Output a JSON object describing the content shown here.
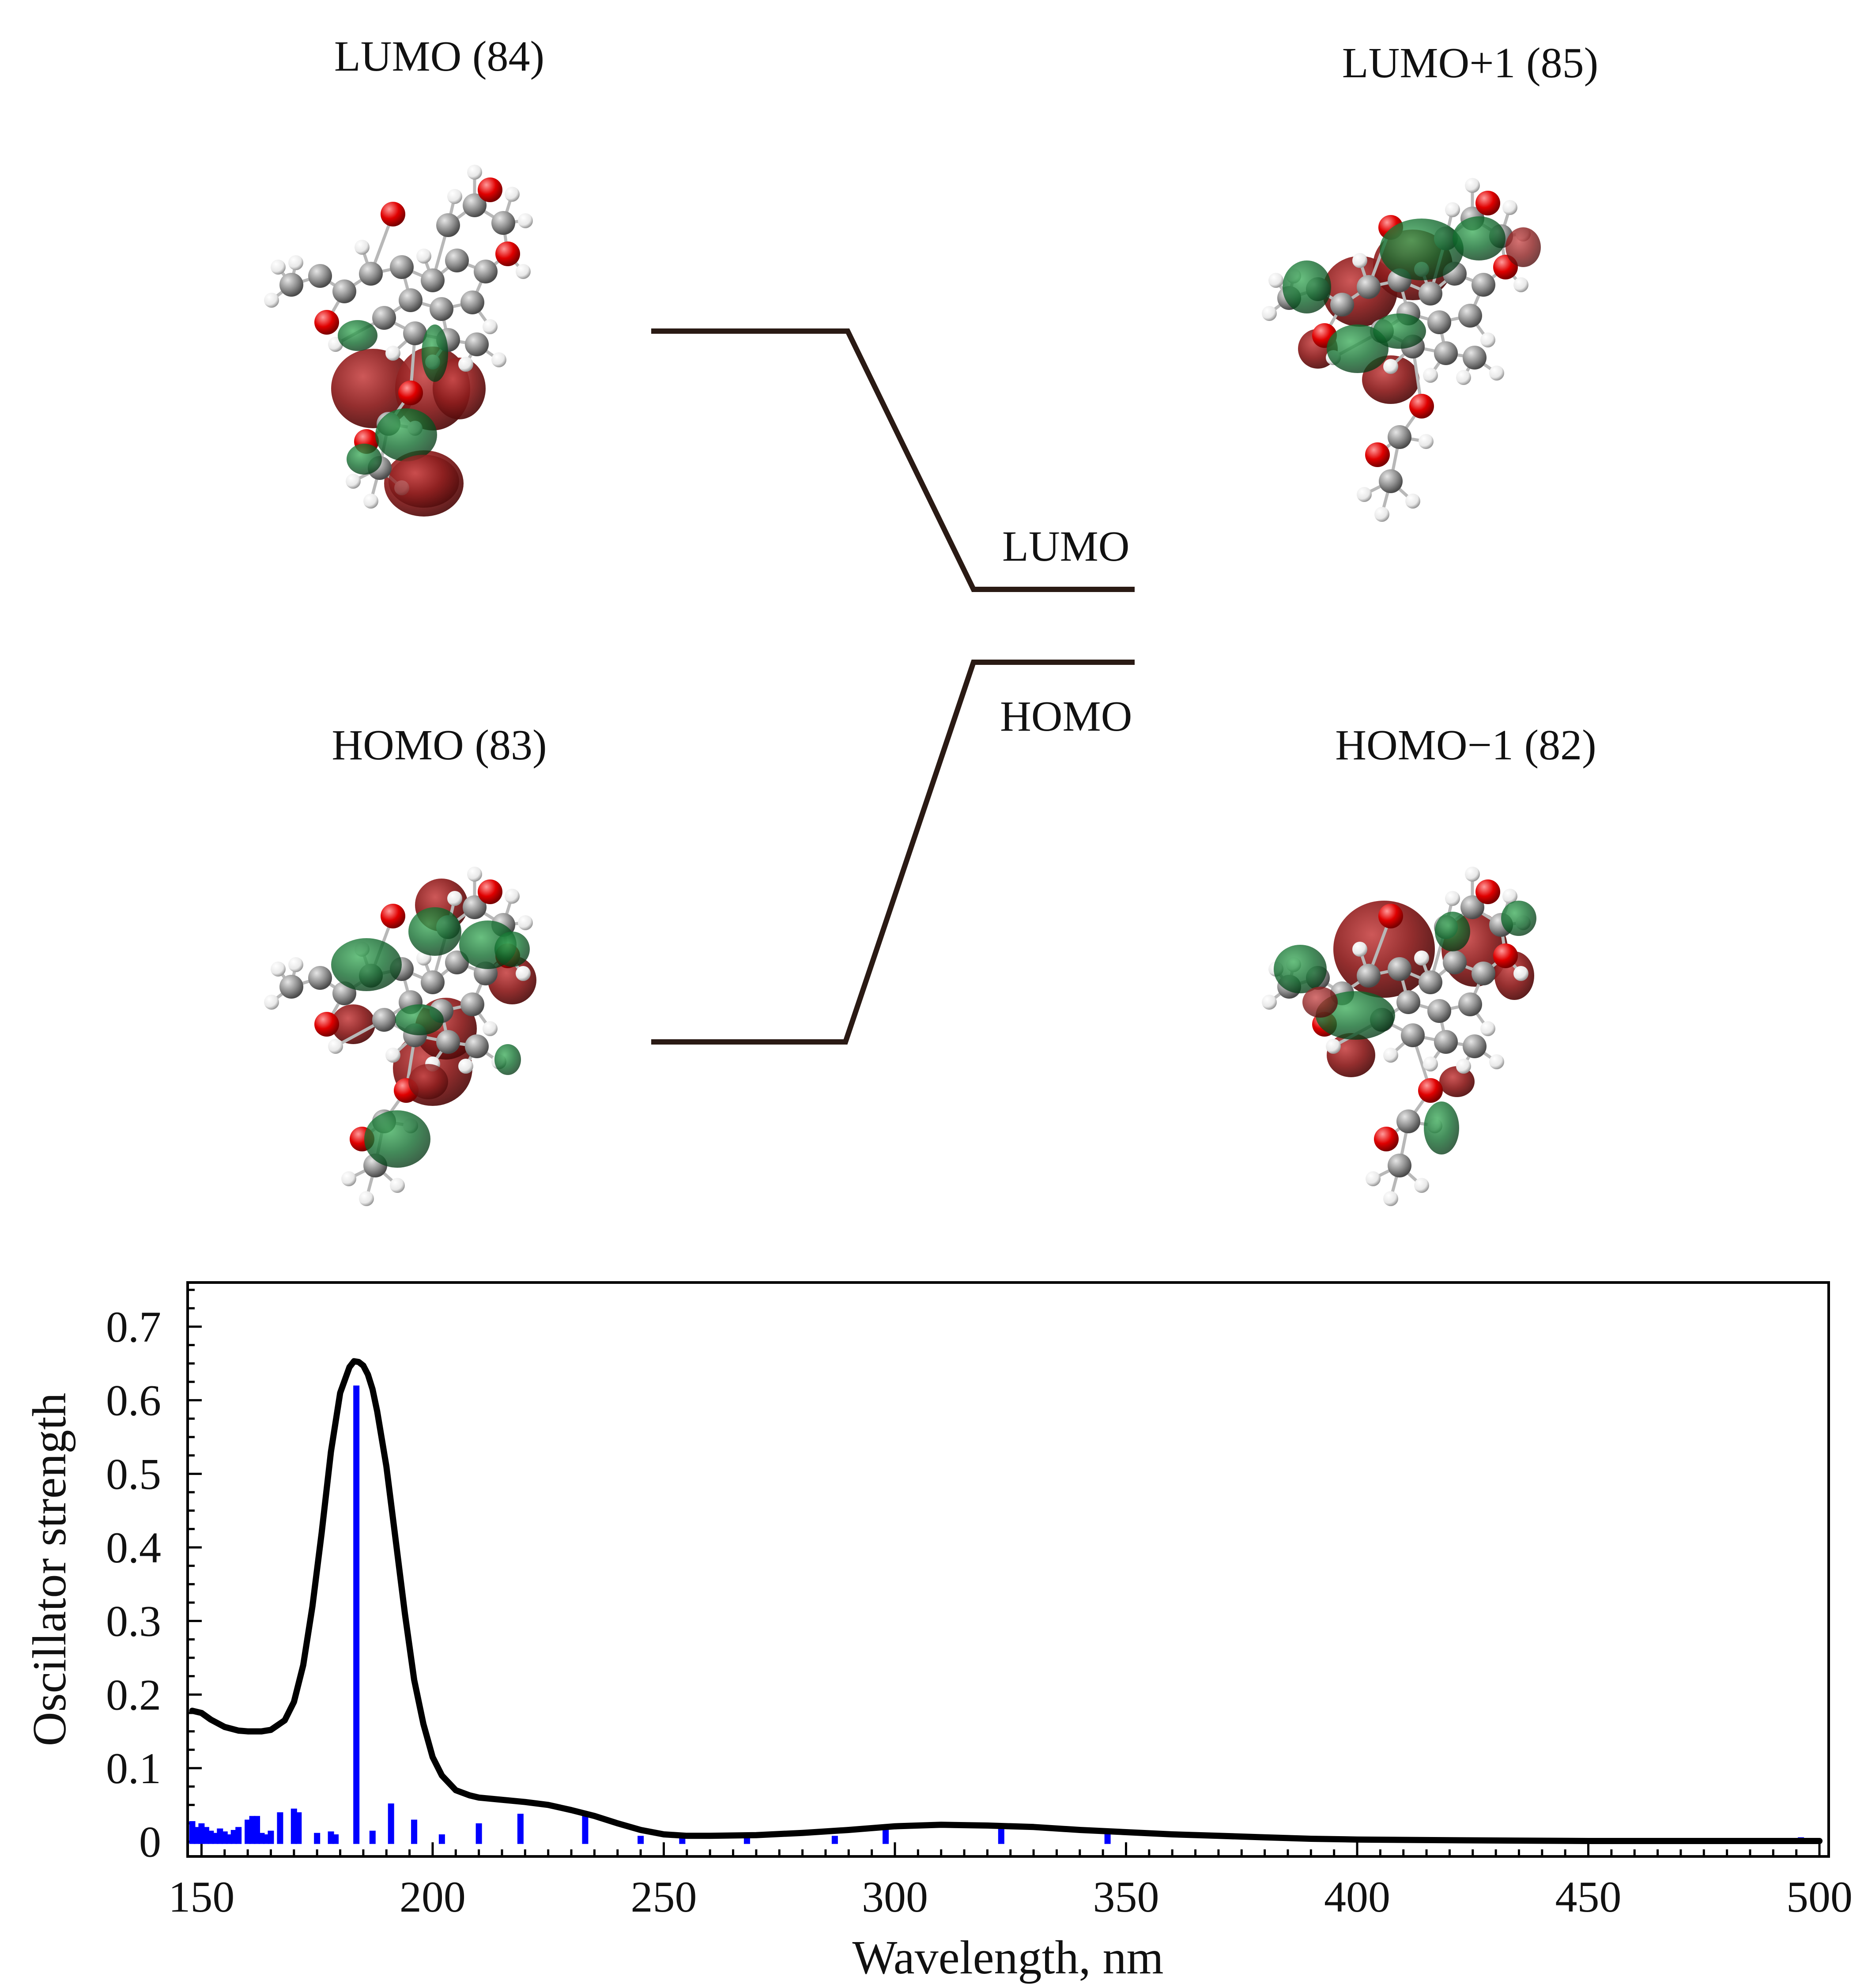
{
  "orbitals": {
    "lumo": {
      "label": "LUMO (84)"
    },
    "lumo_plus_1": {
      "label": "LUMO+1 (85)"
    },
    "homo": {
      "label": "HOMO (83)"
    },
    "homo_minus_1": {
      "label": "HOMO−1 (82)"
    }
  },
  "energy_diagram": {
    "lumo_label": "LUMO",
    "homo_label": "HOMO"
  },
  "colors": {
    "positive_lobe": "#8b1c1c",
    "negative_lobe": "#0f6b2c",
    "carbon": "#8c8c8c",
    "oxygen": "#e00000",
    "hydrogen": "#f2f2f2",
    "bond": "#b0b0b0",
    "line": "#000000",
    "bars": "#0000ff",
    "level_line": "#2a1a14"
  },
  "chart_data": {
    "type": "line",
    "title": "",
    "xlabel": "Wavelength, nm",
    "ylabel": "Oscillator strength",
    "xlim": [
      147,
      502
    ],
    "ylim": [
      -0.02,
      0.76
    ],
    "x_ticks": [
      150,
      200,
      250,
      300,
      350,
      400,
      450,
      500
    ],
    "y_ticks": [
      0,
      0.1,
      0.2,
      0.3,
      0.4,
      0.5,
      0.6,
      0.7
    ],
    "x_tick_labels": [
      "150",
      "200",
      "250",
      "300",
      "350",
      "400",
      "450",
      "500"
    ],
    "y_tick_labels": [
      "0",
      "0.1",
      "0.2",
      "0.3",
      "0.4",
      "0.5",
      "0.6",
      "0.7"
    ],
    "series": [
      {
        "name": "Spectrum",
        "type": "line",
        "color": "#000000",
        "x": [
          148,
          150,
          152,
          155,
          158,
          160,
          163,
          165,
          168,
          170,
          172,
          174,
          176,
          178,
          180,
          182,
          183,
          184,
          185,
          186,
          187,
          188,
          190,
          192,
          194,
          196,
          198,
          200,
          202,
          205,
          208,
          210,
          215,
          220,
          225,
          230,
          235,
          240,
          245,
          250,
          255,
          260,
          270,
          280,
          290,
          300,
          310,
          320,
          330,
          340,
          350,
          360,
          370,
          380,
          390,
          400,
          420,
          450,
          480,
          500
        ],
        "y": [
          0.178,
          0.175,
          0.166,
          0.156,
          0.151,
          0.15,
          0.15,
          0.152,
          0.165,
          0.19,
          0.24,
          0.32,
          0.42,
          0.53,
          0.61,
          0.645,
          0.653,
          0.652,
          0.647,
          0.635,
          0.615,
          0.585,
          0.51,
          0.41,
          0.31,
          0.22,
          0.16,
          0.115,
          0.09,
          0.07,
          0.063,
          0.06,
          0.057,
          0.054,
          0.05,
          0.043,
          0.035,
          0.025,
          0.016,
          0.01,
          0.008,
          0.008,
          0.009,
          0.012,
          0.016,
          0.021,
          0.023,
          0.022,
          0.02,
          0.016,
          0.013,
          0.01,
          0.008,
          0.006,
          0.004,
          0.003,
          0.002,
          0.001,
          0.001,
          0.001
        ]
      },
      {
        "name": "Transitions",
        "type": "bar",
        "color": "#0000ff",
        "x": [
          148,
          149,
          150,
          151,
          152,
          153,
          154,
          155,
          156,
          157,
          158,
          160,
          161,
          162,
          163,
          164,
          165,
          167,
          170,
          171,
          175,
          178,
          179,
          183.5,
          187,
          191,
          196,
          202,
          210,
          219,
          233,
          245,
          254,
          268,
          287,
          298,
          323,
          346,
          496
        ],
        "y": [
          0.028,
          0.02,
          0.025,
          0.02,
          0.015,
          0.012,
          0.018,
          0.014,
          0.01,
          0.016,
          0.02,
          0.03,
          0.035,
          0.035,
          0.012,
          0.01,
          0.015,
          0.04,
          0.045,
          0.04,
          0.012,
          0.014,
          0.01,
          0.62,
          0.015,
          0.052,
          0.03,
          0.01,
          0.025,
          0.038,
          0.035,
          0.008,
          0.01,
          0.01,
          0.008,
          0.022,
          0.02,
          0.012,
          0.006
        ]
      }
    ]
  }
}
